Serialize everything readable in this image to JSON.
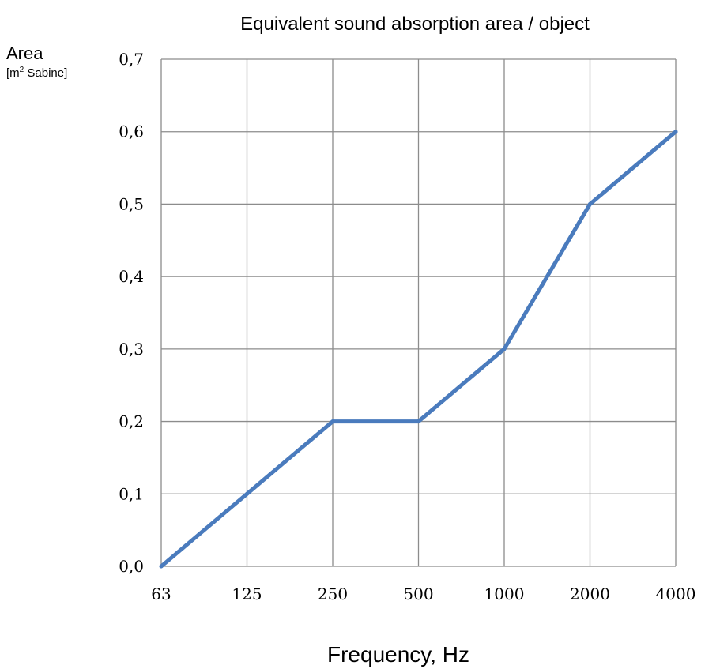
{
  "chart_data": {
    "type": "line",
    "title": "Equivalent sound absorption area / object",
    "ylabel": {
      "main": "Area",
      "unit_prefix": "[m",
      "unit_sup": "2",
      "unit_suffix": " Sabine]"
    },
    "xlabel": "Frequency, Hz",
    "categories": [
      "63",
      "125",
      "250",
      "500",
      "1000",
      "2000",
      "4000"
    ],
    "series": [
      {
        "values": [
          0.0,
          0.1,
          0.2,
          0.2,
          0.3,
          0.5,
          0.6
        ],
        "color": "#4a7bbd"
      }
    ],
    "ylim": [
      0,
      0.7
    ],
    "yticks": [
      0,
      0.1,
      0.2,
      0.3,
      0.4,
      0.5,
      0.6,
      0.7
    ],
    "ytick_labels": [
      "0,0",
      "0,1",
      "0,2",
      "0,3",
      "0,4",
      "0,5",
      "0,6",
      "0,7"
    ],
    "grid": true,
    "legend": "none"
  }
}
